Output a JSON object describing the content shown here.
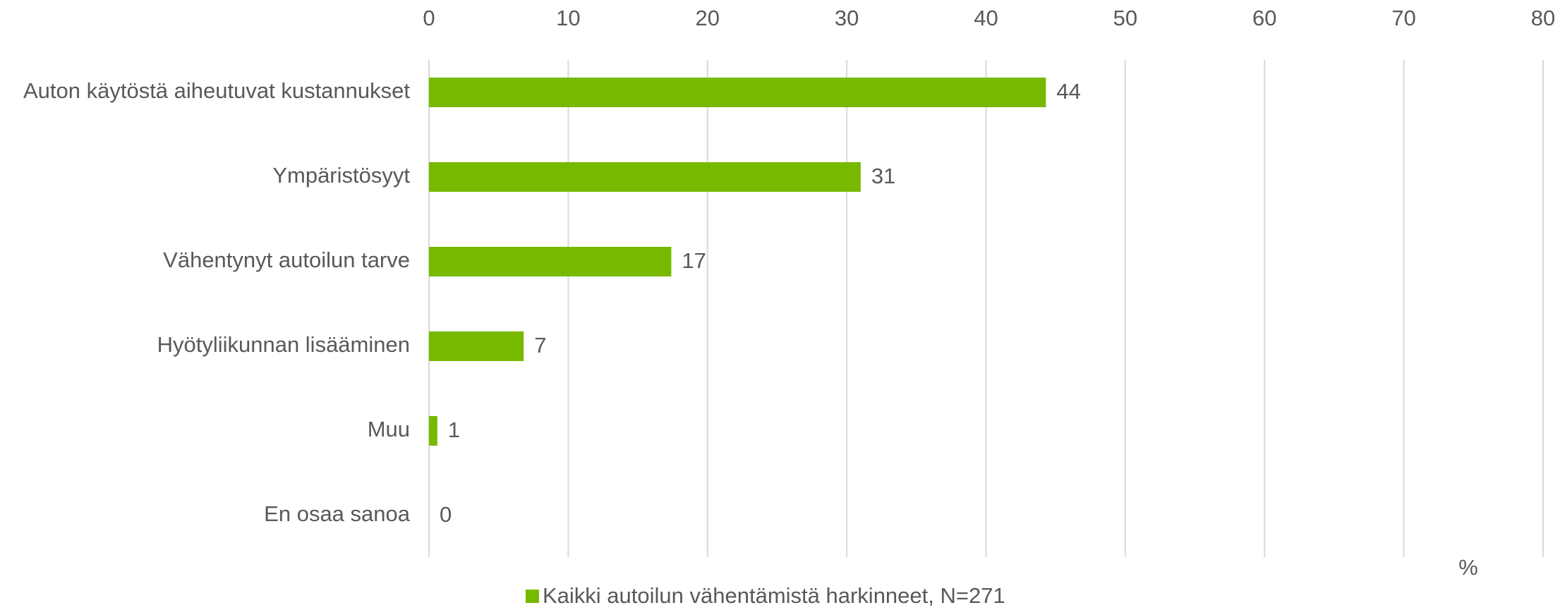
{
  "chart_data": {
    "type": "hbar",
    "categories": [
      "Auton käytöstä aiheutuvat kustannukset",
      "Ympäristösyyt",
      "Vähentynyt autoilun tarve",
      "Hyötyliikunnan lisääminen",
      "Muu",
      "En osaa sanoa"
    ],
    "series": [
      {
        "name": "Kaikki autoilun vähentämistä harkinneet, N=271",
        "color": "#77b900",
        "values": [
          44.3,
          31,
          17.4,
          6.8,
          0.6,
          0
        ],
        "value_labels": [
          "44",
          "31",
          "17",
          "7",
          "1",
          "0"
        ]
      }
    ],
    "xlim": [
      0,
      80
    ],
    "xticks": [
      0,
      10,
      20,
      30,
      40,
      50,
      60,
      70,
      80
    ],
    "unit_label": "%",
    "grid": true,
    "legend": "bottom"
  }
}
